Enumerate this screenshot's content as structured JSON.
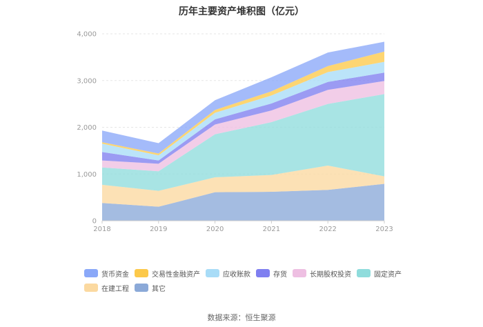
{
  "chart_data": {
    "type": "area",
    "title": "历年主要资产堆积图（亿元）",
    "xlabel": "",
    "ylabel": "",
    "categories": [
      "2018",
      "2019",
      "2020",
      "2021",
      "2022",
      "2023"
    ],
    "ylim": [
      0,
      4000
    ],
    "yticks": [
      0,
      1000,
      2000,
      3000,
      4000
    ],
    "ytick_labels": [
      "0",
      "1,000",
      "2,000",
      "3,000",
      "4,000"
    ],
    "grid": true,
    "legend_position": "bottom",
    "source": "数据来源：恒生聚源",
    "series": [
      {
        "name": "其它",
        "color": "#8ba9d8",
        "values": [
          380,
          300,
          610,
          620,
          660,
          790
        ]
      },
      {
        "name": "在建工程",
        "color": "#fbd9a0",
        "values": [
          390,
          340,
          320,
          360,
          520,
          160
        ]
      },
      {
        "name": "固定资产",
        "color": "#8fdcdc",
        "values": [
          370,
          420,
          920,
          1130,
          1320,
          1760
        ]
      },
      {
        "name": "长期股权投资",
        "color": "#eebfe2",
        "values": [
          150,
          160,
          210,
          250,
          300,
          280
        ]
      },
      {
        "name": "存货",
        "color": "#7f7ff0",
        "values": [
          180,
          70,
          110,
          150,
          170,
          180
        ]
      },
      {
        "name": "应收账款",
        "color": "#a8dcf7",
        "values": [
          180,
          110,
          140,
          170,
          210,
          230
        ]
      },
      {
        "name": "交易性金融资产",
        "color": "#fcc94a",
        "values": [
          30,
          40,
          60,
          90,
          130,
          220
        ]
      },
      {
        "name": "货币资金",
        "color": "#8aa8f8",
        "values": [
          250,
          220,
          210,
          300,
          290,
          210
        ]
      }
    ]
  },
  "legend_order": [
    "货币资金",
    "交易性金融资产",
    "应收账款",
    "存货",
    "长期股权投资",
    "固定资产",
    "在建工程",
    "其它"
  ]
}
